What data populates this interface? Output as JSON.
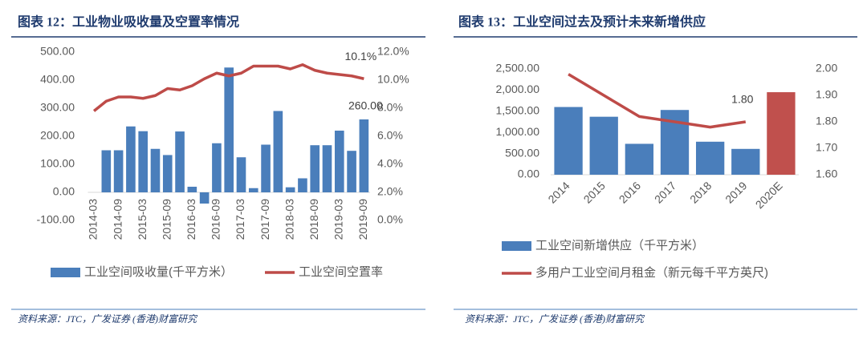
{
  "chart_data": [
    {
      "type": "bar-line",
      "title": "图表 12：工业物业吸收量及空置率情况",
      "source": "资料来源：JTC，广发证券 (香港)财富研究",
      "categories": [
        "2014-03",
        null,
        "2014-09",
        null,
        "2015-03",
        null,
        "2015-09",
        null,
        "2016-03",
        null,
        "2016-09",
        null,
        "2017-03",
        null,
        "2017-09",
        null,
        "2018-03",
        null,
        "2018-09",
        null,
        "2019-03",
        null,
        "2019-09"
      ],
      "series": [
        {
          "name": "工业空间吸收量(千平方米）",
          "type": "bar",
          "color": "#4a7ebb",
          "values": [
            null,
            150,
            150,
            235,
            218,
            155,
            133,
            217,
            20,
            -40,
            175,
            445,
            125,
            15,
            170,
            290,
            18,
            50,
            168,
            168,
            220,
            148,
            260
          ],
          "value_labels": [
            null,
            null,
            null,
            null,
            null,
            null,
            null,
            null,
            null,
            null,
            null,
            null,
            null,
            null,
            null,
            null,
            null,
            null,
            null,
            null,
            null,
            null,
            "260.00"
          ]
        },
        {
          "name": "工业空间空置率",
          "type": "line",
          "axis": "y2",
          "color": "#be4b48",
          "values": [
            7.8,
            8.5,
            8.8,
            8.8,
            8.7,
            8.9,
            9.4,
            9.3,
            9.6,
            10.1,
            10.5,
            10.3,
            10.5,
            11.0,
            11.0,
            11.0,
            10.8,
            11.1,
            10.7,
            10.5,
            10.4,
            10.3,
            10.1
          ],
          "value_labels": [
            null,
            null,
            null,
            null,
            null,
            null,
            null,
            null,
            null,
            null,
            null,
            null,
            null,
            null,
            null,
            null,
            null,
            null,
            null,
            null,
            null,
            null,
            "10.1%"
          ]
        }
      ],
      "ylim": [
        -100,
        500
      ],
      "yticks": [
        {
          "value": -100,
          "label": "-100.00"
        },
        {
          "value": 0,
          "label": "0.00"
        },
        {
          "value": 100,
          "label": "100.00"
        },
        {
          "value": 200,
          "label": "200.00"
        },
        {
          "value": 300,
          "label": "300.00"
        },
        {
          "value": 400,
          "label": "400.00"
        },
        {
          "value": 500,
          "label": "500.00"
        }
      ],
      "y2lim": [
        0,
        12
      ],
      "y2ticks": [
        {
          "value": 0,
          "label": "0.0%"
        },
        {
          "value": 2,
          "label": "2.0%"
        },
        {
          "value": 4,
          "label": "4.0%"
        },
        {
          "value": 6,
          "label": "6.0%"
        },
        {
          "value": 8,
          "label": "8.0%"
        },
        {
          "value": 10,
          "label": "10.0%"
        },
        {
          "value": 12,
          "label": "12.0%"
        }
      ],
      "grid": false
    },
    {
      "type": "bar-line",
      "title": "图表 13：工业空间过去及预计未来新增供应",
      "source": "资料来源：JTC，广发证券 (香港)财富研究",
      "categories": [
        "2014",
        "2015",
        "2016",
        "2017",
        "2018",
        "2019",
        "2020E"
      ],
      "series": [
        {
          "name": "工业空间新增供应（千平方米）",
          "type": "bar",
          "color": "#4a7ebb",
          "colors": [
            "#4a7ebb",
            "#4a7ebb",
            "#4a7ebb",
            "#4a7ebb",
            "#4a7ebb",
            "#4a7ebb",
            "#c0504d"
          ],
          "values": [
            1600,
            1370,
            730,
            1530,
            780,
            610,
            1950
          ]
        },
        {
          "name": "多用户工业空间月租金（新元每千平方英尺)",
          "type": "line",
          "axis": "y2",
          "color": "#be4b48",
          "values": [
            1.98,
            1.9,
            1.82,
            1.8,
            1.78,
            1.8,
            null
          ],
          "value_labels": [
            null,
            null,
            null,
            null,
            null,
            "1.80",
            null
          ]
        }
      ],
      "ylim": [
        0,
        2500
      ],
      "yticks": [
        {
          "value": 0,
          "label": "0.00"
        },
        {
          "value": 500,
          "label": "500.00"
        },
        {
          "value": 1000,
          "label": "1,000.00"
        },
        {
          "value": 1500,
          "label": "1,500.00"
        },
        {
          "value": 2000,
          "label": "2,000.00"
        },
        {
          "value": 2500,
          "label": "2,500.00"
        }
      ],
      "y2lim": [
        1.6,
        2.0
      ],
      "y2ticks": [
        {
          "value": 1.6,
          "label": "1.60"
        },
        {
          "value": 1.7,
          "label": "1.70"
        },
        {
          "value": 1.8,
          "label": "1.80"
        },
        {
          "value": 1.9,
          "label": "1.90"
        },
        {
          "value": 2.0,
          "label": "2.00"
        }
      ],
      "grid": false
    }
  ]
}
